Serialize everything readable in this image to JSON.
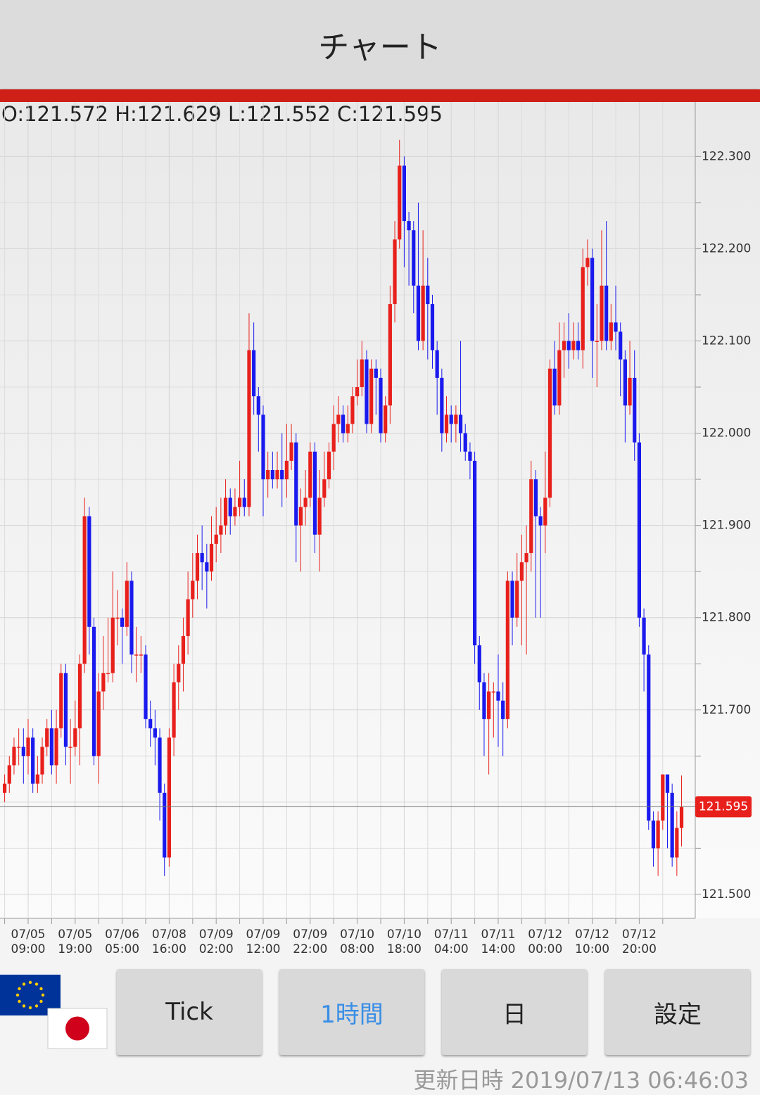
{
  "app": {
    "title": "チャート",
    "ohlc_header": "O:121.572 H:121.629 L:121.552 C:121.595",
    "buttons": [
      "Tick",
      "1時間",
      "日",
      "設定"
    ],
    "updated": "更新日時 2019/07/13 06:46:03"
  },
  "chart_data": {
    "type": "candlestick",
    "up_color": "#e8201c",
    "down_color": "#1a1aee",
    "grid": true,
    "ylim": [
      121.474,
      122.359
    ],
    "yticks": [
      {
        "value": 121.5,
        "label": "121.500"
      },
      {
        "value": 121.6,
        "label": "121.600"
      },
      {
        "value": 121.7,
        "label": "121.700"
      },
      {
        "value": 121.8,
        "label": "121.800"
      },
      {
        "value": 121.9,
        "label": "121.900"
      },
      {
        "value": 122.0,
        "label": "122.000"
      },
      {
        "value": 122.1,
        "label": "122.100"
      },
      {
        "value": 122.2,
        "label": "122.200"
      },
      {
        "value": 122.3,
        "label": "122.300"
      }
    ],
    "minor_yticks": [
      121.55,
      121.65,
      121.75,
      121.85,
      121.95,
      122.05,
      122.15,
      122.25
    ],
    "categories": [
      null,
      null,
      null,
      null,
      null,
      "07/05 09:00",
      null,
      null,
      null,
      null,
      null,
      null,
      null,
      null,
      null,
      "07/05 19:00",
      null,
      null,
      null,
      null,
      null,
      null,
      null,
      null,
      null,
      "07/06 05:00",
      null,
      null,
      null,
      null,
      null,
      null,
      null,
      null,
      null,
      "07/08 16:00",
      null,
      null,
      null,
      null,
      null,
      null,
      null,
      null,
      null,
      "07/09 02:00",
      null,
      null,
      null,
      null,
      null,
      null,
      null,
      null,
      null,
      "07/09 12:00",
      null,
      null,
      null,
      null,
      null,
      null,
      null,
      null,
      null,
      "07/09 22:00",
      null,
      null,
      null,
      null,
      null,
      null,
      null,
      null,
      null,
      "07/10 08:00",
      null,
      null,
      null,
      null,
      null,
      null,
      null,
      null,
      null,
      "07/10 18:00",
      null,
      null,
      null,
      null,
      null,
      null,
      null,
      null,
      null,
      "07/11 04:00",
      null,
      null,
      null,
      null,
      null,
      null,
      null,
      null,
      null,
      "07/11 14:00",
      null,
      null,
      null,
      null,
      null,
      null,
      null,
      null,
      null,
      "07/12 00:00",
      null,
      null,
      null,
      null,
      null,
      null,
      null,
      null,
      null,
      "07/12 10:00",
      null,
      null,
      null,
      null,
      null,
      null,
      null,
      null,
      null,
      "07/12 20:00",
      null,
      null,
      null,
      null,
      null,
      null,
      null,
      null,
      null
    ],
    "open": [
      121.61,
      121.62,
      121.64,
      121.66,
      121.66,
      121.65,
      121.67,
      121.62,
      121.63,
      121.66,
      121.68,
      121.64,
      121.68,
      121.74,
      121.66,
      121.66,
      121.68,
      121.75,
      121.91,
      121.79,
      121.65,
      121.72,
      121.74,
      121.74,
      121.8,
      121.8,
      121.79,
      121.84,
      121.76,
      121.76,
      121.76,
      121.69,
      121.68,
      121.67,
      121.61,
      121.54,
      121.67,
      121.73,
      121.75,
      121.78,
      121.82,
      121.84,
      121.87,
      121.86,
      121.85,
      121.88,
      121.89,
      121.9,
      121.93,
      121.91,
      121.92,
      121.93,
      121.92,
      122.09,
      122.04,
      122.02,
      121.95,
      121.96,
      121.95,
      121.96,
      121.95,
      121.97,
      121.99,
      121.9,
      121.92,
      121.93,
      121.98,
      121.89,
      121.93,
      121.95,
      121.98,
      122.01,
      122.02,
      122.0,
      122.01,
      122.04,
      122.05,
      122.08,
      122.01,
      122.07,
      122.06,
      122.0,
      122.03,
      122.14,
      122.21,
      122.29,
      122.23,
      122.22,
      122.16,
      122.1,
      122.16,
      122.14,
      122.09,
      122.06,
      122.0,
      122.02,
      122.01,
      122.02,
      122.0,
      121.98,
      121.97,
      121.77,
      121.73,
      121.69,
      121.72,
      121.72,
      121.71,
      121.69,
      121.84,
      121.8,
      121.84,
      121.86,
      121.87,
      121.95,
      121.91,
      121.9,
      121.93,
      122.07,
      122.03,
      122.09,
      122.1,
      122.09,
      122.1,
      122.09,
      122.18,
      122.19,
      122.1,
      122.1,
      122.16,
      122.1,
      122.12,
      122.11,
      122.08,
      122.03,
      122.06,
      121.99,
      121.8,
      121.76,
      121.58,
      121.55,
      121.58,
      121.63,
      121.61,
      121.54,
      121.572
    ],
    "high": [
      121.63,
      121.65,
      121.67,
      121.68,
      121.68,
      121.69,
      121.68,
      121.65,
      121.67,
      121.69,
      121.7,
      121.7,
      121.75,
      121.75,
      121.69,
      121.71,
      121.76,
      121.93,
      121.92,
      121.8,
      121.74,
      121.78,
      121.8,
      121.85,
      121.83,
      121.81,
      121.86,
      121.85,
      121.79,
      121.78,
      121.77,
      121.71,
      121.7,
      121.68,
      121.62,
      121.68,
      121.75,
      121.77,
      121.8,
      121.85,
      121.87,
      121.89,
      121.9,
      121.88,
      121.91,
      121.92,
      121.93,
      121.95,
      121.94,
      121.94,
      121.97,
      121.95,
      122.13,
      122.12,
      122.05,
      122.03,
      121.98,
      121.98,
      121.98,
      122.0,
      122.01,
      122.01,
      122.0,
      121.94,
      121.96,
      121.99,
      121.99,
      121.96,
      121.98,
      121.99,
      122.03,
      122.04,
      122.03,
      122.03,
      122.05,
      122.08,
      122.1,
      122.09,
      122.08,
      122.08,
      122.07,
      122.04,
      122.16,
      122.23,
      122.318,
      122.3,
      122.24,
      122.23,
      122.25,
      122.22,
      122.19,
      122.15,
      122.1,
      122.07,
      122.04,
      122.03,
      122.03,
      122.1,
      122.01,
      121.99,
      121.98,
      121.78,
      121.74,
      121.74,
      121.73,
      121.76,
      121.73,
      121.85,
      121.85,
      121.87,
      121.89,
      121.9,
      121.97,
      121.96,
      121.92,
      121.98,
      122.08,
      122.1,
      122.12,
      122.12,
      122.13,
      122.12,
      122.12,
      122.2,
      122.21,
      122.2,
      122.14,
      122.22,
      122.23,
      122.14,
      122.16,
      122.12,
      122.09,
      122.1,
      122.09,
      122.0,
      121.81,
      121.77,
      121.59,
      121.59,
      121.63,
      121.63,
      121.62,
      121.59,
      121.629
    ],
    "low": [
      121.6,
      121.61,
      121.63,
      121.64,
      121.62,
      121.63,
      121.61,
      121.61,
      121.62,
      121.65,
      121.63,
      121.62,
      121.67,
      121.64,
      121.62,
      121.65,
      121.64,
      121.74,
      121.76,
      121.64,
      121.62,
      121.7,
      121.73,
      121.73,
      121.77,
      121.75,
      121.78,
      121.74,
      121.73,
      121.74,
      121.68,
      121.66,
      121.64,
      121.58,
      121.52,
      121.53,
      121.65,
      121.7,
      121.72,
      121.76,
      121.8,
      121.82,
      121.83,
      121.81,
      121.84,
      121.86,
      121.87,
      121.89,
      121.89,
      121.9,
      121.91,
      121.91,
      121.91,
      122.02,
      121.98,
      121.91,
      121.93,
      121.94,
      121.94,
      121.92,
      121.93,
      121.96,
      121.86,
      121.85,
      121.9,
      121.92,
      121.87,
      121.85,
      121.92,
      121.94,
      121.96,
      121.99,
      121.99,
      121.99,
      122.0,
      122.03,
      122.04,
      122.0,
      122.0,
      122.02,
      121.99,
      121.99,
      122.01,
      122.12,
      122.2,
      122.18,
      122.16,
      122.13,
      122.09,
      122.09,
      122.08,
      122.07,
      122.02,
      121.98,
      121.99,
      121.99,
      121.99,
      121.98,
      121.97,
      121.95,
      121.75,
      121.7,
      121.65,
      121.63,
      121.67,
      121.66,
      121.65,
      121.68,
      121.77,
      121.79,
      121.77,
      121.76,
      121.85,
      121.8,
      121.8,
      121.87,
      121.92,
      122.02,
      122.02,
      122.06,
      122.07,
      122.08,
      122.08,
      122.07,
      122.16,
      122.06,
      122.05,
      122.09,
      122.09,
      122.09,
      122.09,
      122.04,
      121.99,
      122.02,
      121.97,
      121.79,
      121.72,
      121.57,
      121.53,
      121.52,
      121.57,
      121.55,
      121.53,
      121.52,
      121.552
    ],
    "close": [
      121.62,
      121.64,
      121.66,
      121.66,
      121.65,
      121.67,
      121.62,
      121.63,
      121.66,
      121.68,
      121.64,
      121.68,
      121.74,
      121.66,
      121.66,
      121.68,
      121.75,
      121.91,
      121.79,
      121.65,
      121.72,
      121.74,
      121.74,
      121.8,
      121.8,
      121.79,
      121.84,
      121.76,
      121.76,
      121.76,
      121.69,
      121.68,
      121.67,
      121.61,
      121.54,
      121.67,
      121.73,
      121.75,
      121.78,
      121.82,
      121.84,
      121.87,
      121.86,
      121.85,
      121.88,
      121.89,
      121.9,
      121.93,
      121.91,
      121.92,
      121.93,
      121.92,
      122.09,
      122.04,
      122.02,
      121.95,
      121.96,
      121.95,
      121.96,
      121.95,
      121.97,
      121.99,
      121.9,
      121.92,
      121.93,
      121.98,
      121.89,
      121.93,
      121.95,
      121.98,
      122.01,
      122.02,
      122.0,
      122.01,
      122.04,
      122.05,
      122.08,
      122.01,
      122.07,
      122.06,
      122.0,
      122.03,
      122.14,
      122.21,
      122.29,
      122.23,
      122.22,
      122.16,
      122.1,
      122.16,
      122.14,
      122.09,
      122.06,
      122.0,
      122.02,
      122.01,
      122.02,
      122.0,
      121.98,
      121.97,
      121.77,
      121.73,
      121.69,
      121.72,
      121.72,
      121.71,
      121.69,
      121.84,
      121.8,
      121.84,
      121.86,
      121.87,
      121.95,
      121.91,
      121.9,
      121.93,
      122.07,
      122.03,
      122.09,
      122.1,
      122.09,
      122.1,
      122.09,
      122.18,
      122.19,
      122.1,
      122.1,
      122.16,
      122.1,
      122.12,
      122.11,
      122.08,
      122.03,
      122.06,
      121.99,
      121.8,
      121.76,
      121.58,
      121.55,
      121.58,
      121.63,
      121.61,
      121.54,
      121.572,
      121.595
    ]
  }
}
